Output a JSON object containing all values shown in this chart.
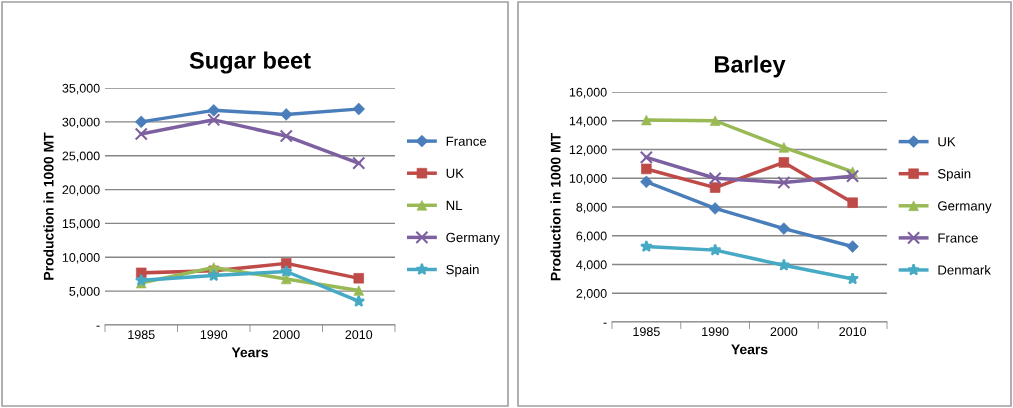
{
  "chart_data": [
    {
      "type": "line",
      "title": "Sugar beet",
      "xlabel": "Years",
      "ylabel": "Production in 1000 MT",
      "categories": [
        "1985",
        "1990",
        "2000",
        "2010"
      ],
      "series": [
        {
          "name": "France",
          "color": "#4a7ebb",
          "marker": "diamond",
          "values": [
            30000,
            31700,
            31100,
            31900
          ]
        },
        {
          "name": "UK",
          "color": "#be4b48",
          "marker": "square",
          "values": [
            7700,
            8000,
            9100,
            6900
          ]
        },
        {
          "name": "NL",
          "color": "#98b954",
          "marker": "triangle",
          "values": [
            6200,
            8500,
            6800,
            5100
          ]
        },
        {
          "name": "Germany",
          "color": "#7d60a0",
          "marker": "cross",
          "values": [
            28200,
            30300,
            27900,
            23900
          ]
        },
        {
          "name": "Spain",
          "color": "#46aac5",
          "marker": "star",
          "values": [
            6600,
            7300,
            7900,
            3500
          ]
        }
      ],
      "ylim": [
        0,
        35000
      ],
      "yticks": [
        {
          "value": 0,
          "label": "-"
        },
        {
          "value": 5000,
          "label": "5,000"
        },
        {
          "value": 10000,
          "label": "10,000"
        },
        {
          "value": 15000,
          "label": "15,000"
        },
        {
          "value": 20000,
          "label": "20,000"
        },
        {
          "value": 25000,
          "label": "25,000"
        },
        {
          "value": 30000,
          "label": "30,000"
        },
        {
          "value": 35000,
          "label": "35,000"
        }
      ],
      "grid": "y",
      "legend": "right"
    },
    {
      "type": "line",
      "title": "Barley",
      "xlabel": "Years",
      "ylabel": "Production in 1000 MT",
      "categories": [
        "1985",
        "1990",
        "2000",
        "2010"
      ],
      "series": [
        {
          "name": "UK",
          "color": "#4a7ebb",
          "marker": "diamond",
          "values": [
            9750,
            7900,
            6500,
            5250
          ]
        },
        {
          "name": "Spain",
          "color": "#be4b48",
          "marker": "square",
          "values": [
            10650,
            9350,
            11100,
            8300
          ]
        },
        {
          "name": "Germany",
          "color": "#98b954",
          "marker": "triangle",
          "values": [
            14050,
            14000,
            12150,
            10450
          ]
        },
        {
          "name": "France",
          "color": "#7d60a0",
          "marker": "cross",
          "values": [
            11450,
            10000,
            9700,
            10150
          ]
        },
        {
          "name": "Denmark",
          "color": "#46aac5",
          "marker": "star",
          "values": [
            5250,
            5000,
            3950,
            3000
          ]
        }
      ],
      "ylim": [
        0,
        16000
      ],
      "yticks": [
        {
          "value": 0,
          "label": "-"
        },
        {
          "value": 2000,
          "label": "2,000"
        },
        {
          "value": 4000,
          "label": "4,000"
        },
        {
          "value": 6000,
          "label": "6,000"
        },
        {
          "value": 8000,
          "label": "8,000"
        },
        {
          "value": 10000,
          "label": "10,000"
        },
        {
          "value": 12000,
          "label": "12,000"
        },
        {
          "value": 14000,
          "label": "14,000"
        },
        {
          "value": 16000,
          "label": "16,000"
        }
      ],
      "grid": "y",
      "legend": "right"
    }
  ]
}
